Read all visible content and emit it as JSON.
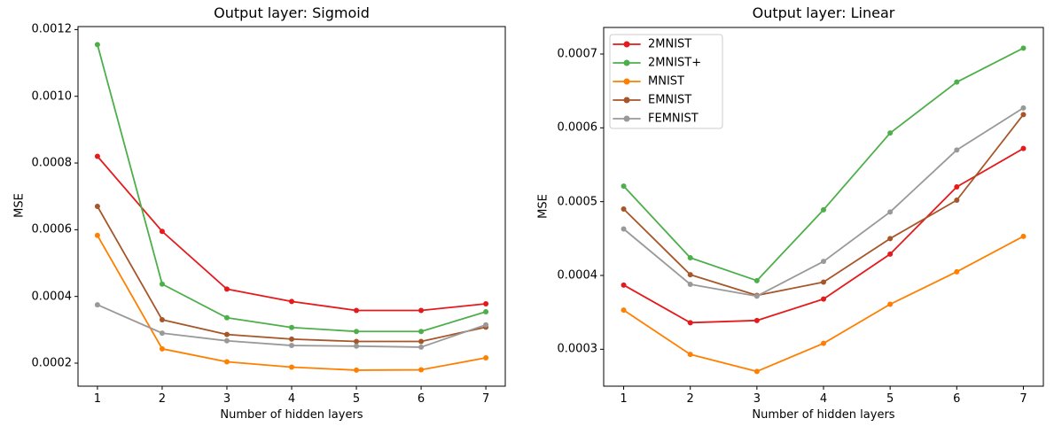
{
  "figure": {
    "background": "#ffffff",
    "frame_color": "#000000",
    "text_color": "#000000",
    "legend_border_color": "#cccccc"
  },
  "chart_data": [
    {
      "type": "line",
      "title": "Output layer: Sigmoid",
      "xlabel": "Number of hidden layers",
      "ylabel": "MSE",
      "grid": false,
      "legend": false,
      "x": [
        1,
        2,
        3,
        4,
        5,
        6,
        7
      ],
      "xlim": [
        0.7,
        7.3
      ],
      "ylim": [
        0.000131,
        0.001209
      ],
      "xticks": [
        1,
        2,
        3,
        4,
        5,
        6,
        7
      ],
      "xtick_labels": [
        "1",
        "2",
        "3",
        "4",
        "5",
        "6",
        "7"
      ],
      "yticks": [
        0.0002,
        0.0004,
        0.0006,
        0.0008,
        0.001,
        0.0012
      ],
      "ytick_labels": [
        "0.0002",
        "0.0004",
        "0.0006",
        "0.0008",
        "0.0010",
        "0.0012"
      ],
      "series": [
        {
          "name": "2MNIST",
          "color": "#e41a1c",
          "values": [
            0.00082,
            0.000595,
            0.000422,
            0.000385,
            0.000358,
            0.000358,
            0.000378
          ]
        },
        {
          "name": "2MNIST+",
          "color": "#4daf4a",
          "values": [
            0.001155,
            0.000437,
            0.000336,
            0.000307,
            0.000295,
            0.000295,
            0.000354
          ]
        },
        {
          "name": "MNIST",
          "color": "#ff7f00",
          "values": [
            0.000583,
            0.000243,
            0.000204,
            0.000188,
            0.000179,
            0.00018,
            0.000216
          ]
        },
        {
          "name": "EMNIST",
          "color": "#a65628",
          "values": [
            0.00067,
            0.00033,
            0.000286,
            0.000272,
            0.000265,
            0.000265,
            0.000308
          ]
        },
        {
          "name": "FEMNIST",
          "color": "#999999",
          "values": [
            0.000375,
            0.00029,
            0.000267,
            0.000253,
            0.000251,
            0.000248,
            0.000315
          ]
        }
      ]
    },
    {
      "type": "line",
      "title": "Output layer: Linear",
      "xlabel": "Number of hidden layers",
      "ylabel": "MSE",
      "grid": false,
      "legend": true,
      "legend_location": "upper left",
      "x": [
        1,
        2,
        3,
        4,
        5,
        6,
        7
      ],
      "xlim": [
        0.7,
        7.3
      ],
      "ylim": [
        0.00025,
        0.000736
      ],
      "xticks": [
        1,
        2,
        3,
        4,
        5,
        6,
        7
      ],
      "xtick_labels": [
        "1",
        "2",
        "3",
        "4",
        "5",
        "6",
        "7"
      ],
      "yticks": [
        0.0003,
        0.0004,
        0.0005,
        0.0006,
        0.0007
      ],
      "ytick_labels": [
        "0.0003",
        "0.0004",
        "0.0005",
        "0.0006",
        "0.0007"
      ],
      "series": [
        {
          "name": "2MNIST",
          "color": "#e41a1c",
          "values": [
            0.000387,
            0.000336,
            0.000339,
            0.000368,
            0.000429,
            0.00052,
            0.000572
          ]
        },
        {
          "name": "2MNIST+",
          "color": "#4daf4a",
          "values": [
            0.000521,
            0.000424,
            0.000393,
            0.000489,
            0.000593,
            0.000662,
            0.000708
          ]
        },
        {
          "name": "MNIST",
          "color": "#ff7f00",
          "values": [
            0.000353,
            0.000293,
            0.00027,
            0.000308,
            0.000361,
            0.000405,
            0.000453
          ]
        },
        {
          "name": "EMNIST",
          "color": "#a65628",
          "values": [
            0.00049,
            0.000401,
            0.000373,
            0.000391,
            0.00045,
            0.000502,
            0.000618
          ]
        },
        {
          "name": "FEMNIST",
          "color": "#999999",
          "values": [
            0.000463,
            0.000388,
            0.000372,
            0.000419,
            0.000486,
            0.00057,
            0.000627
          ]
        }
      ]
    }
  ]
}
